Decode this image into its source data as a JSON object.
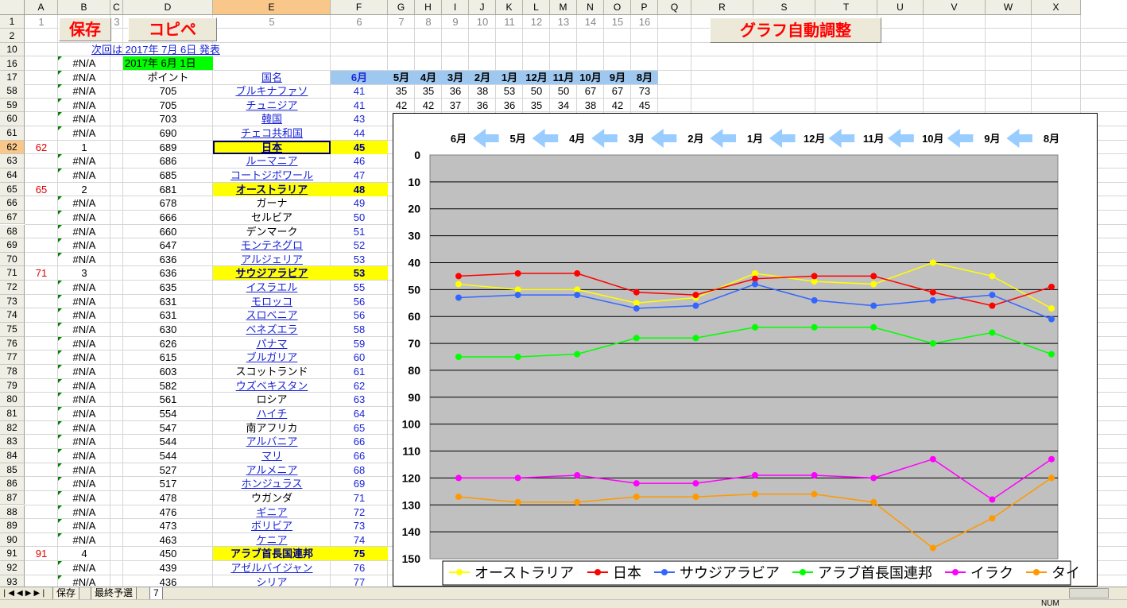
{
  "columns": [
    "A",
    "B",
    "C",
    "D",
    "E",
    "F",
    "G",
    "H",
    "I",
    "J",
    "K",
    "L",
    "M",
    "N",
    "O",
    "P",
    "Q",
    "R",
    "S",
    "T",
    "U",
    "V",
    "W",
    "X"
  ],
  "selected_column": "E",
  "selected_row": "62",
  "row1": {
    "a": "1",
    "c": "3",
    "e": "5",
    "f": "6",
    "g": "7",
    "h": "8",
    "i": "9",
    "j": "10",
    "k": "11",
    "l": "12",
    "m": "13",
    "n": "14",
    "o": "15",
    "p": "16"
  },
  "buttons": {
    "save": "保存",
    "copy": "コピペ",
    "graph": "グラフ自動調整"
  },
  "announcement": "次回は 2017年 7月 6日 発表",
  "date_label": "2017年 6月 1日",
  "header_row": {
    "b": "#N/A",
    "d": "ポイント",
    "e": "国名",
    "f": "6月",
    "months": [
      "5月",
      "4月",
      "3月",
      "2月",
      "1月",
      "12月",
      "11月",
      "10月",
      "9月",
      "8月"
    ]
  },
  "rows": [
    {
      "row": "58",
      "a": "",
      "b": "#N/A",
      "d": "705",
      "e": "ブルキナファソ",
      "link": true,
      "f": "41",
      "hist": [
        "35",
        "35",
        "36",
        "38",
        "53",
        "50",
        "50",
        "67",
        "67",
        "73"
      ]
    },
    {
      "row": "59",
      "a": "",
      "b": "#N/A",
      "d": "705",
      "e": "チュニジア",
      "link": true,
      "f": "41",
      "hist": [
        "42",
        "42",
        "37",
        "36",
        "36",
        "35",
        "34",
        "38",
        "42",
        "45"
      ]
    },
    {
      "row": "60",
      "a": "",
      "b": "#N/A",
      "d": "703",
      "e": "韓国",
      "link": true,
      "f": "43"
    },
    {
      "row": "61",
      "a": "",
      "b": "#N/A",
      "d": "690",
      "e": "チェコ共和国",
      "link": true,
      "f": "44"
    },
    {
      "row": "62",
      "a": "62",
      "b": "1",
      "d": "689",
      "e": "日本",
      "link": true,
      "f": "45",
      "hl": true,
      "selected": true
    },
    {
      "row": "63",
      "a": "",
      "b": "#N/A",
      "d": "686",
      "e": "ルーマニア",
      "link": true,
      "f": "46"
    },
    {
      "row": "64",
      "a": "",
      "b": "#N/A",
      "d": "685",
      "e": "コートジボワール",
      "link": true,
      "f": "47"
    },
    {
      "row": "65",
      "a": "65",
      "b": "2",
      "d": "681",
      "e": "オーストラリア",
      "link": true,
      "f": "48",
      "hl": true
    },
    {
      "row": "66",
      "a": "",
      "b": "#N/A",
      "d": "678",
      "e": "ガーナ",
      "link": false,
      "f": "49"
    },
    {
      "row": "67",
      "a": "",
      "b": "#N/A",
      "d": "666",
      "e": "セルビア",
      "link": false,
      "f": "50"
    },
    {
      "row": "68",
      "a": "",
      "b": "#N/A",
      "d": "660",
      "e": "デンマーク",
      "link": false,
      "f": "51"
    },
    {
      "row": "69",
      "a": "",
      "b": "#N/A",
      "d": "647",
      "e": "モンテネグロ",
      "link": true,
      "f": "52"
    },
    {
      "row": "70",
      "a": "",
      "b": "#N/A",
      "d": "636",
      "e": "アルジェリア",
      "link": true,
      "f": "53"
    },
    {
      "row": "71",
      "a": "71",
      "b": "3",
      "d": "636",
      "e": "サウジアラビア",
      "link": true,
      "f": "53",
      "hl": true
    },
    {
      "row": "72",
      "a": "",
      "b": "#N/A",
      "d": "635",
      "e": "イスラエル",
      "link": true,
      "f": "55"
    },
    {
      "row": "73",
      "a": "",
      "b": "#N/A",
      "d": "631",
      "e": "モロッコ",
      "link": true,
      "f": "56"
    },
    {
      "row": "74",
      "a": "",
      "b": "#N/A",
      "d": "631",
      "e": "スロベニア",
      "link": true,
      "f": "56"
    },
    {
      "row": "75",
      "a": "",
      "b": "#N/A",
      "d": "630",
      "e": "ベネズエラ",
      "link": true,
      "f": "58"
    },
    {
      "row": "76",
      "a": "",
      "b": "#N/A",
      "d": "626",
      "e": "パナマ",
      "link": true,
      "f": "59"
    },
    {
      "row": "77",
      "a": "",
      "b": "#N/A",
      "d": "615",
      "e": "ブルガリア",
      "link": true,
      "f": "60"
    },
    {
      "row": "78",
      "a": "",
      "b": "#N/A",
      "d": "603",
      "e": "スコットランド",
      "link": false,
      "f": "61"
    },
    {
      "row": "79",
      "a": "",
      "b": "#N/A",
      "d": "582",
      "e": "ウズベキスタン",
      "link": true,
      "f": "62"
    },
    {
      "row": "80",
      "a": "",
      "b": "#N/A",
      "d": "561",
      "e": "ロシア",
      "link": false,
      "f": "63"
    },
    {
      "row": "81",
      "a": "",
      "b": "#N/A",
      "d": "554",
      "e": "ハイチ",
      "link": true,
      "f": "64"
    },
    {
      "row": "82",
      "a": "",
      "b": "#N/A",
      "d": "547",
      "e": "南アフリカ",
      "link": false,
      "f": "65"
    },
    {
      "row": "83",
      "a": "",
      "b": "#N/A",
      "d": "544",
      "e": "アルバニア",
      "link": true,
      "f": "66"
    },
    {
      "row": "84",
      "a": "",
      "b": "#N/A",
      "d": "544",
      "e": "マリ",
      "link": true,
      "f": "66"
    },
    {
      "row": "85",
      "a": "",
      "b": "#N/A",
      "d": "527",
      "e": "アルメニア",
      "link": true,
      "f": "68"
    },
    {
      "row": "86",
      "a": "",
      "b": "#N/A",
      "d": "517",
      "e": "ホンジュラス",
      "link": true,
      "f": "69"
    },
    {
      "row": "87",
      "a": "",
      "b": "#N/A",
      "d": "478",
      "e": "ウガンダ",
      "link": false,
      "f": "71"
    },
    {
      "row": "88",
      "a": "",
      "b": "#N/A",
      "d": "476",
      "e": "ギニア",
      "link": true,
      "f": "72"
    },
    {
      "row": "89",
      "a": "",
      "b": "#N/A",
      "d": "473",
      "e": "ボリビア",
      "link": true,
      "f": "73"
    },
    {
      "row": "90",
      "a": "",
      "b": "#N/A",
      "d": "463",
      "e": "ケニア",
      "link": true,
      "f": "74"
    },
    {
      "row": "91",
      "a": "91",
      "b": "4",
      "d": "450",
      "e": "アラブ首長国連邦",
      "link": false,
      "f": "75",
      "hl": true
    },
    {
      "row": "92",
      "a": "",
      "b": "#N/A",
      "d": "439",
      "e": "アゼルバイジャン",
      "link": true,
      "f": "76"
    },
    {
      "row": "93",
      "a": "",
      "b": "#N/A",
      "d": "436",
      "e": "シリア",
      "link": true,
      "f": "77"
    }
  ],
  "chart_data": {
    "type": "line",
    "x": [
      "6月",
      "5月",
      "4月",
      "3月",
      "2月",
      "1月",
      "12月",
      "11月",
      "10月",
      "9月",
      "8月"
    ],
    "ylim": [
      0,
      150
    ],
    "y_reversed": true,
    "y_ticks": [
      0,
      10,
      20,
      30,
      40,
      50,
      60,
      70,
      80,
      90,
      100,
      110,
      120,
      130,
      140,
      150
    ],
    "grid": true,
    "legend_position": "bottom",
    "series": [
      {
        "name": "オーストラリア",
        "color": "#ffff00",
        "values": [
          48,
          50,
          50,
          55,
          53,
          44,
          47,
          48,
          40,
          45,
          57
        ]
      },
      {
        "name": "日本",
        "color": "#ff0000",
        "values": [
          45,
          44,
          44,
          51,
          52,
          46,
          45,
          45,
          51,
          56,
          49
        ]
      },
      {
        "name": "サウジアラビア",
        "color": "#3366ff",
        "values": [
          53,
          52,
          52,
          57,
          56,
          48,
          54,
          56,
          54,
          52,
          61
        ]
      },
      {
        "name": "アラブ首長国連邦",
        "color": "#00ff00",
        "values": [
          75,
          75,
          74,
          68,
          68,
          64,
          64,
          64,
          70,
          66,
          74
        ]
      },
      {
        "name": "イラク",
        "color": "#ff00ff",
        "values": [
          120,
          120,
          119,
          122,
          122,
          119,
          119,
          120,
          113,
          128,
          113
        ]
      },
      {
        "name": "タイ",
        "color": "#ff9900",
        "values": [
          127,
          129,
          129,
          127,
          127,
          126,
          126,
          129,
          146,
          135,
          120
        ]
      }
    ]
  },
  "sheet_tabs": [
    "保存",
    "最終予選",
    "7"
  ],
  "active_tab": "7",
  "status": {
    "num": "NUM"
  },
  "colors": {
    "header_bg": "#efefe6",
    "selected_header": "#f9c78a",
    "chart_plot_bg": "#c0c0c0",
    "arrow": "#99ccff"
  }
}
